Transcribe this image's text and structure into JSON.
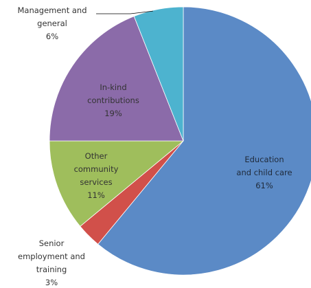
{
  "chart_data": {
    "type": "pie",
    "title": "",
    "slices": [
      {
        "lines": [
          "Education",
          "and child care"
        ],
        "percent_label": "61%",
        "value": 61,
        "color": "#5b8ac6"
      },
      {
        "lines": [
          "Senior",
          "employment and",
          "training"
        ],
        "percent_label": "3%",
        "value": 3,
        "color": "#d1504a"
      },
      {
        "lines": [
          "Other",
          "community",
          "services"
        ],
        "percent_label": "11%",
        "value": 11,
        "color": "#9fbe5c"
      },
      {
        "lines": [
          "In-kind",
          "contributions"
        ],
        "percent_label": "19%",
        "value": 19,
        "color": "#8b6ba9"
      },
      {
        "lines": [
          "Management and",
          "general"
        ],
        "percent_label": "6%",
        "value": 6,
        "color": "#4db3cf"
      }
    ],
    "start": "12 o'clock",
    "direction": "clockwise",
    "legend": "none"
  }
}
